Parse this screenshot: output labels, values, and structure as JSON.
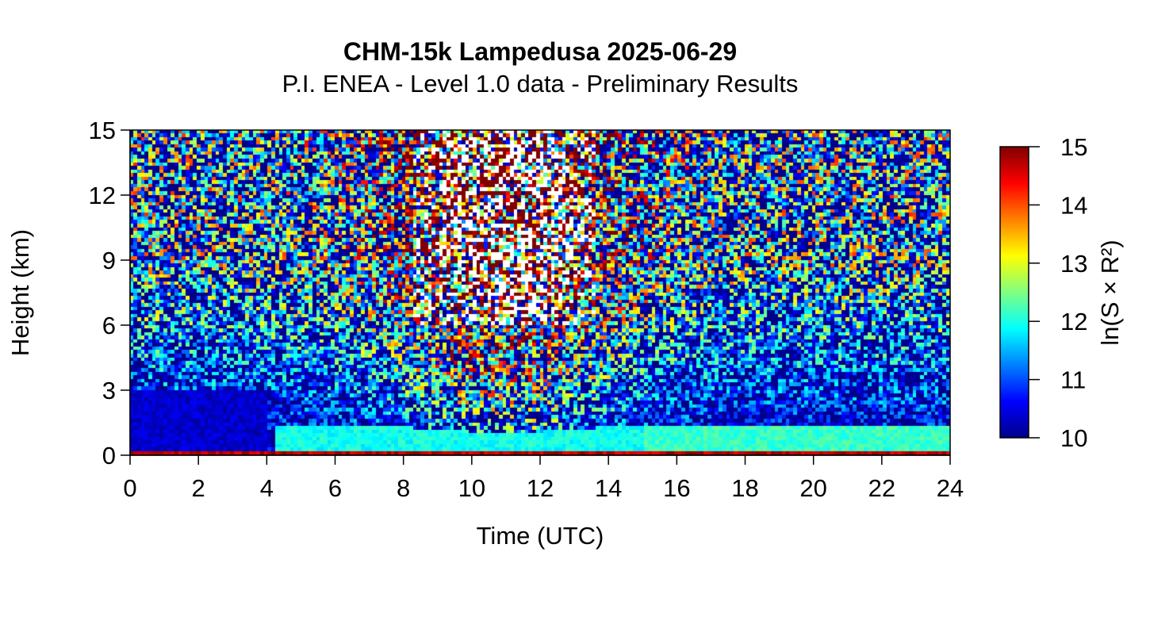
{
  "chart_data": {
    "type": "heatmap",
    "title": "CHM-15k Lampedusa 2025-06-29",
    "subtitle": "P.I. ENEA - Level 1.0 data - Preliminary Results",
    "xlabel": "Time (UTC)",
    "ylabel": "Height (km)",
    "xlim": [
      0,
      24
    ],
    "ylim": [
      0,
      15
    ],
    "x_ticks": [
      "0",
      "2",
      "4",
      "6",
      "8",
      "10",
      "12",
      "14",
      "16",
      "18",
      "20",
      "22",
      "24"
    ],
    "y_ticks": [
      "0",
      "3",
      "6",
      "9",
      "12",
      "15"
    ],
    "colorbar": {
      "label": "ln(S × R²)",
      "range": [
        10,
        15
      ],
      "ticks": [
        "10",
        "11",
        "12",
        "13",
        "14",
        "15"
      ],
      "colormap": [
        "#00008b",
        "#0000ff",
        "#0080ff",
        "#00ffff",
        "#80ff80",
        "#ffff00",
        "#ff8000",
        "#ff0000",
        "#800000"
      ]
    },
    "features": {
      "boundary_layer_top_km": 1.3,
      "surface_layer_value": 15,
      "low_noise_value": 10.3,
      "high_noise_noon_value": 14.2
    }
  }
}
